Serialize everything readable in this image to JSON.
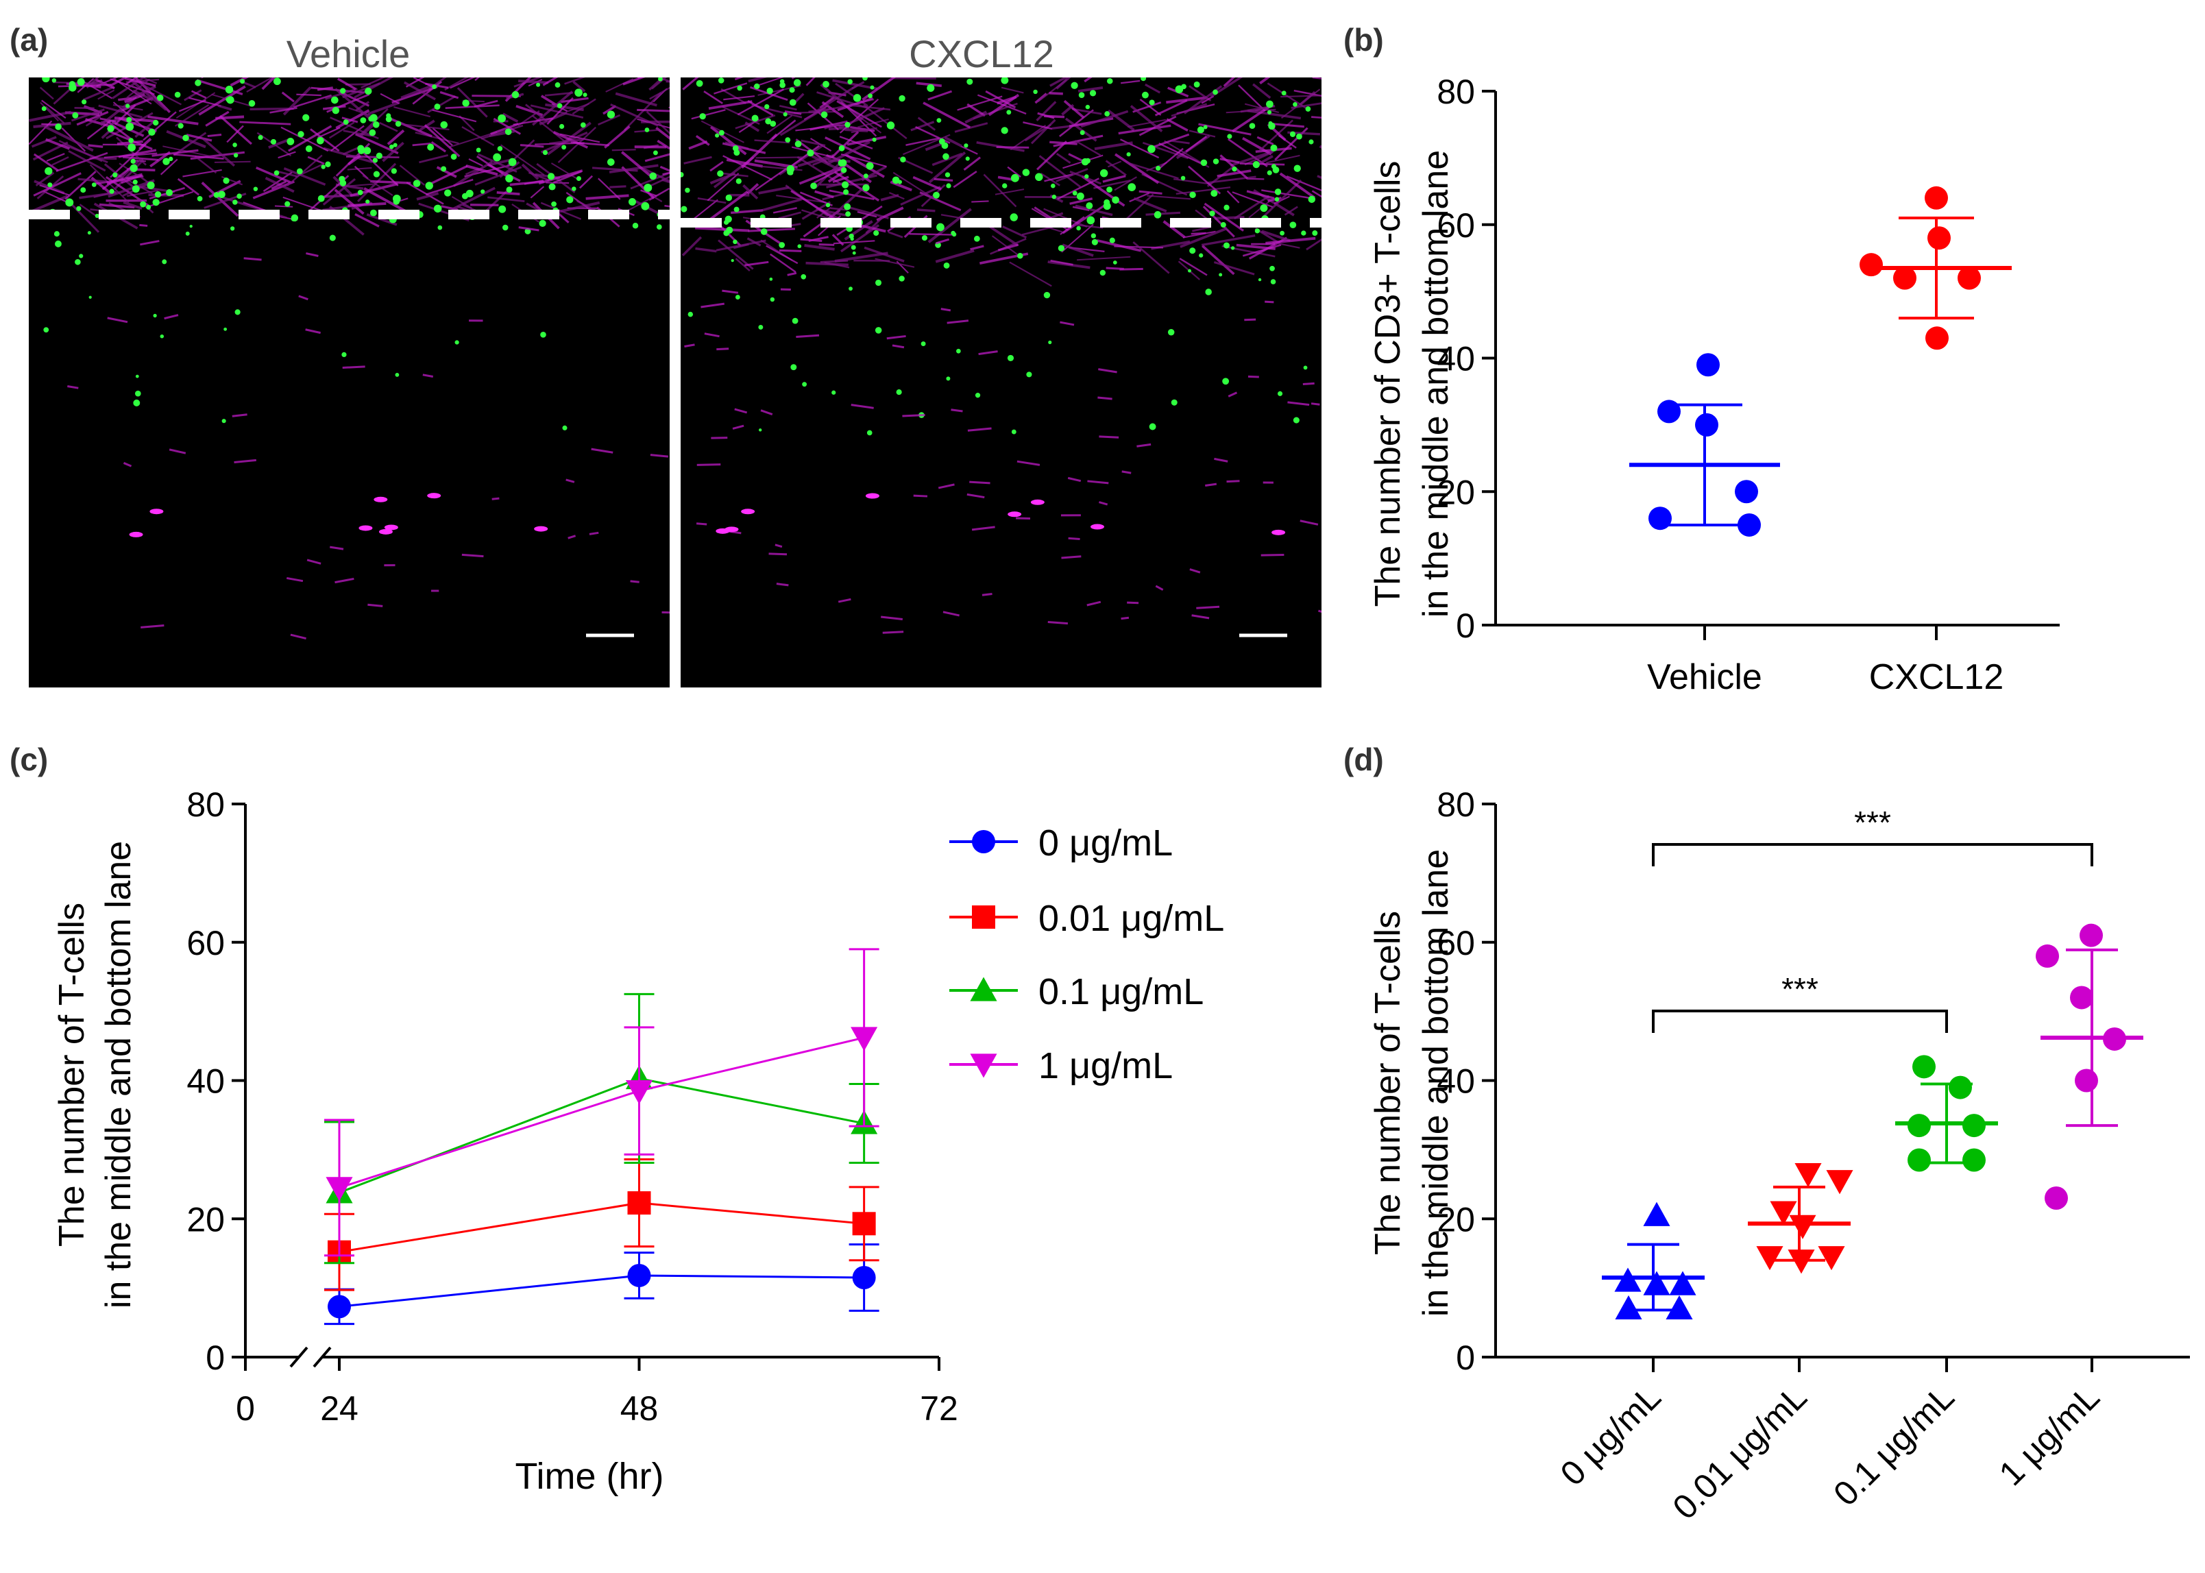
{
  "panels": {
    "a": {
      "label": "(a)",
      "images": [
        {
          "title": "Vehicle"
        },
        {
          "title": "CXCL12"
        }
      ]
    },
    "b": {
      "label": "(b)"
    },
    "c": {
      "label": "(c)"
    },
    "d": {
      "label": "(d)"
    }
  },
  "chart_data": [
    {
      "panel": "b",
      "type": "scatter",
      "title": "",
      "xlabel": "",
      "ylabel": [
        "The number of CD3+ T-cells",
        "in the middle and bottom lane"
      ],
      "ylim": [
        0,
        80
      ],
      "yticks": [
        0,
        20,
        40,
        60,
        80
      ],
      "categories": [
        "Vehicle",
        "CXCL12"
      ],
      "groups": [
        {
          "name": "Vehicle",
          "color": "#0000ff",
          "points": [
            39,
            32,
            30,
            20,
            16,
            15
          ],
          "mean": 24,
          "sd_low": 15,
          "sd_high": 33
        },
        {
          "name": "CXCL12",
          "color": "#ff0000",
          "points": [
            64,
            58,
            54,
            52,
            52,
            43
          ],
          "mean": 53.5,
          "sd_low": 46,
          "sd_high": 61
        }
      ]
    },
    {
      "panel": "c",
      "type": "line",
      "title": "",
      "xlabel": "Time (hr)",
      "ylabel": [
        "The number of T-cells",
        "in the middle and bottom lane"
      ],
      "xticks": [
        0,
        24,
        48,
        72
      ],
      "axis_break": "between 0 and 24",
      "ylim": [
        0,
        80
      ],
      "yticks": [
        0,
        20,
        40,
        60,
        80
      ],
      "x": [
        24,
        48,
        66
      ],
      "series": [
        {
          "name": "0 μg/mL",
          "color": "#0000ff",
          "marker": "circle",
          "values": [
            7.3,
            11.8,
            11.5
          ],
          "err": [
            2.5,
            3.3,
            4.8
          ]
        },
        {
          "name": "0.01 μg/mL",
          "color": "#ff0000",
          "marker": "square",
          "values": [
            15.2,
            22.3,
            19.3
          ],
          "err": [
            5.5,
            6.3,
            5.3
          ]
        },
        {
          "name": "0.1 μg/mL",
          "color": "#00bb00",
          "marker": "triangle-up",
          "values": [
            23.8,
            40.3,
            33.8
          ],
          "err": [
            10.2,
            12.2,
            5.7
          ]
        },
        {
          "name": "1 μg/mL",
          "color": "#dd00dd",
          "marker": "triangle-down",
          "values": [
            24.5,
            38.5,
            46.2
          ],
          "err": [
            9.8,
            9.2,
            12.8
          ]
        }
      ]
    },
    {
      "panel": "d",
      "type": "scatter",
      "title": "",
      "xlabel": "",
      "ylabel": [
        "The number of T-cells",
        "in the middle and bottom lane"
      ],
      "ylim": [
        0,
        80
      ],
      "yticks": [
        0,
        20,
        40,
        60,
        80
      ],
      "categories": [
        "0 μg/mL",
        "0.01 μg/mL",
        "0.1 μg/mL",
        "1 μg/mL"
      ],
      "groups": [
        {
          "name": "0 μg/mL",
          "color": "#0000ff",
          "marker": "triangle-up",
          "points": [
            20.5,
            11,
            10.5,
            10.5,
            7,
            7
          ],
          "mean": 11.5,
          "sd_low": 6.8,
          "sd_high": 16.3
        },
        {
          "name": "0.01 μg/mL",
          "color": "#ff0000",
          "marker": "triangle-down",
          "points": [
            26.5,
            25.5,
            21,
            19,
            14.5,
            14.5,
            14
          ],
          "mean": 19.3,
          "sd_low": 14,
          "sd_high": 24.6
        },
        {
          "name": "0.1 μg/mL",
          "color": "#00bb00",
          "marker": "circle",
          "points": [
            42,
            39,
            33.5,
            33.5,
            28.5,
            28.5
          ],
          "mean": 33.8,
          "sd_low": 28.1,
          "sd_high": 39.5
        },
        {
          "name": "1 μg/mL",
          "color": "#cc00cc",
          "marker": "circle",
          "points": [
            61,
            58,
            52,
            46,
            40,
            23
          ],
          "mean": 46.2,
          "sd_low": 33.5,
          "sd_high": 58.9
        }
      ],
      "significance": [
        {
          "from": "0 μg/mL",
          "to": "0.1 μg/mL",
          "label": "***"
        },
        {
          "from": "0 μg/mL",
          "to": "1 μg/mL",
          "label": "***"
        }
      ]
    }
  ]
}
